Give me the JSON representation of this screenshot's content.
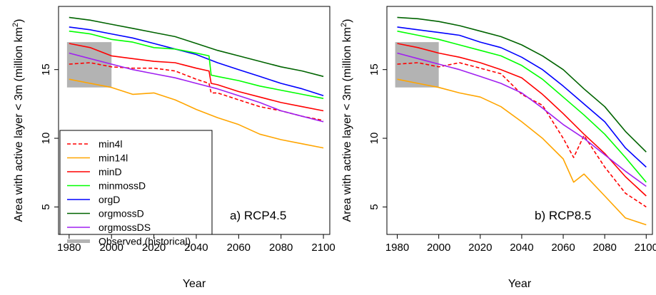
{
  "chart_data": [
    {
      "type": "line",
      "panel_label": "a) RCP4.5",
      "xlabel": "Year",
      "ylabel_prefix": "Area with active layer < 3m (million km",
      "ylabel_sup": "2",
      "ylabel_suffix": ")",
      "xlim": [
        1975,
        2103
      ],
      "ylim": [
        3.0,
        19.6
      ],
      "xticks": [
        1980,
        2000,
        2020,
        2040,
        2060,
        2080,
        2100
      ],
      "yticks": [
        5,
        10,
        15
      ],
      "observed": {
        "x": [
          1979,
          2000
        ],
        "y": [
          13.7,
          17.0
        ],
        "color": "#b3b3b3"
      },
      "legend": {
        "placement": "bottom-left",
        "entries": [
          {
            "name": "min4l",
            "color": "#ff0000",
            "dash": true
          },
          {
            "name": "min14l",
            "color": "#ffa500",
            "dash": false
          },
          {
            "name": "minD",
            "color": "#ff0000",
            "dash": false
          },
          {
            "name": "minmossD",
            "color": "#00ff00",
            "dash": false
          },
          {
            "name": "orgD",
            "color": "#0000ff",
            "dash": false
          },
          {
            "name": "orgmossD",
            "color": "#006400",
            "dash": false
          },
          {
            "name": "orgmossDS",
            "color": "#a020f0",
            "dash": false
          },
          {
            "name": "Observed (historical)",
            "color": "#b3b3b3",
            "dash": false,
            "thick": true
          }
        ]
      },
      "series": [
        {
          "name": "orgmossD",
          "color": "#006400",
          "dash": false,
          "x": [
            1980,
            1990,
            2000,
            2010,
            2020,
            2030,
            2040,
            2050,
            2060,
            2070,
            2080,
            2090,
            2100
          ],
          "y": [
            18.8,
            18.6,
            18.3,
            18.0,
            17.7,
            17.4,
            16.9,
            16.4,
            16.0,
            15.6,
            15.2,
            14.9,
            14.5
          ]
        },
        {
          "name": "orgD",
          "color": "#0000ff",
          "dash": false,
          "x": [
            1980,
            1990,
            2000,
            2010,
            2020,
            2030,
            2040,
            2050,
            2060,
            2070,
            2080,
            2090,
            2100
          ],
          "y": [
            18.1,
            17.9,
            17.6,
            17.3,
            16.9,
            16.5,
            16.1,
            15.5,
            15.0,
            14.5,
            14.0,
            13.6,
            13.1
          ]
        },
        {
          "name": "minmossD",
          "color": "#00ff00",
          "dash": false,
          "x": [
            1980,
            1990,
            2000,
            2010,
            2020,
            2030,
            2040,
            2046,
            2047,
            2050,
            2060,
            2070,
            2080,
            2090,
            2100
          ],
          "y": [
            17.8,
            17.6,
            17.2,
            17.0,
            16.6,
            16.5,
            16.2,
            16.0,
            14.6,
            14.5,
            14.2,
            13.8,
            13.5,
            13.2,
            12.9
          ]
        },
        {
          "name": "minD",
          "color": "#ff0000",
          "dash": false,
          "x": [
            1980,
            1990,
            2000,
            2010,
            2020,
            2030,
            2040,
            2046,
            2047,
            2050,
            2060,
            2070,
            2080,
            2090,
            2100
          ],
          "y": [
            16.9,
            16.6,
            16.0,
            15.8,
            15.6,
            15.5,
            15.1,
            14.9,
            14.0,
            13.9,
            13.4,
            13.0,
            12.6,
            12.3,
            12.0
          ]
        },
        {
          "name": "min4l",
          "color": "#ff0000",
          "dash": true,
          "x": [
            1980,
            1990,
            2000,
            2010,
            2020,
            2030,
            2040,
            2046,
            2047,
            2050,
            2060,
            2070,
            2080,
            2090,
            2100
          ],
          "y": [
            15.4,
            15.5,
            15.2,
            15.1,
            15.1,
            14.9,
            14.3,
            14.0,
            13.3,
            13.3,
            12.8,
            12.3,
            12.0,
            11.6,
            11.3
          ]
        },
        {
          "name": "orgmossDS",
          "color": "#a020f0",
          "dash": false,
          "x": [
            1980,
            1990,
            2000,
            2010,
            2020,
            2030,
            2040,
            2050,
            2060,
            2070,
            2080,
            2090,
            2100
          ],
          "y": [
            16.2,
            15.8,
            15.4,
            15.0,
            14.7,
            14.4,
            14.0,
            13.6,
            13.1,
            12.6,
            12.0,
            11.6,
            11.2
          ]
        },
        {
          "name": "min14l",
          "color": "#ffa500",
          "dash": false,
          "x": [
            1980,
            1990,
            2000,
            2010,
            2020,
            2030,
            2040,
            2050,
            2060,
            2070,
            2080,
            2090,
            2100
          ],
          "y": [
            14.3,
            14.0,
            13.7,
            13.2,
            13.3,
            12.8,
            12.1,
            11.5,
            11.0,
            10.3,
            9.9,
            9.6,
            9.3
          ]
        }
      ]
    },
    {
      "type": "line",
      "panel_label": "b) RCP8.5",
      "xlabel": "Year",
      "ylabel_prefix": "Area with active layer < 3m (million km",
      "ylabel_sup": "2",
      "ylabel_suffix": ")",
      "xlim": [
        1975,
        2103
      ],
      "ylim": [
        3.0,
        19.6
      ],
      "xticks": [
        1980,
        2000,
        2020,
        2040,
        2060,
        2080,
        2100
      ],
      "yticks": [
        5,
        10,
        15
      ],
      "observed": {
        "x": [
          1979,
          2000
        ],
        "y": [
          13.7,
          17.0
        ],
        "color": "#b3b3b3"
      },
      "series": [
        {
          "name": "orgmossD",
          "color": "#006400",
          "dash": false,
          "x": [
            1980,
            1990,
            2000,
            2010,
            2020,
            2030,
            2040,
            2050,
            2060,
            2070,
            2080,
            2090,
            2100
          ],
          "y": [
            18.8,
            18.7,
            18.5,
            18.2,
            17.8,
            17.4,
            16.8,
            16.0,
            15.0,
            13.6,
            12.3,
            10.5,
            9.0
          ]
        },
        {
          "name": "orgD",
          "color": "#0000ff",
          "dash": false,
          "x": [
            1980,
            1990,
            2000,
            2010,
            2020,
            2030,
            2040,
            2050,
            2060,
            2070,
            2080,
            2090,
            2100
          ],
          "y": [
            18.1,
            17.9,
            17.7,
            17.5,
            17.0,
            16.6,
            15.9,
            15.0,
            13.8,
            12.5,
            11.2,
            9.3,
            7.9
          ]
        },
        {
          "name": "minmossD",
          "color": "#00ff00",
          "dash": false,
          "x": [
            1980,
            1990,
            2000,
            2010,
            2020,
            2030,
            2040,
            2050,
            2060,
            2070,
            2080,
            2090,
            2100
          ],
          "y": [
            17.8,
            17.5,
            17.2,
            16.8,
            16.4,
            16.0,
            15.3,
            14.3,
            13.0,
            11.7,
            10.3,
            8.6,
            6.8
          ]
        },
        {
          "name": "minD",
          "color": "#ff0000",
          "dash": false,
          "x": [
            1980,
            1990,
            2000,
            2010,
            2020,
            2030,
            2040,
            2050,
            2060,
            2070,
            2080,
            2090,
            2100
          ],
          "y": [
            16.9,
            16.6,
            16.2,
            15.9,
            15.5,
            15.0,
            14.4,
            13.2,
            11.8,
            10.3,
            8.9,
            7.2,
            5.8
          ]
        },
        {
          "name": "min4l",
          "color": "#ff0000",
          "dash": true,
          "x": [
            1980,
            1990,
            2000,
            2010,
            2020,
            2030,
            2040,
            2050,
            2060,
            2065,
            2070,
            2080,
            2090,
            2100
          ],
          "y": [
            15.4,
            15.5,
            15.2,
            15.5,
            15.1,
            14.7,
            13.2,
            12.4,
            10.0,
            8.6,
            10.2,
            7.9,
            6.0,
            5.0
          ]
        },
        {
          "name": "orgmossDS",
          "color": "#a020f0",
          "dash": false,
          "x": [
            1980,
            1990,
            2000,
            2010,
            2020,
            2030,
            2040,
            2050,
            2060,
            2070,
            2080,
            2090,
            2100
          ],
          "y": [
            16.2,
            15.8,
            15.4,
            15.0,
            14.5,
            14.0,
            13.3,
            12.2,
            11.0,
            10.0,
            8.8,
            7.6,
            6.5
          ]
        },
        {
          "name": "min14l",
          "color": "#ffa500",
          "dash": false,
          "x": [
            1980,
            1990,
            2000,
            2010,
            2020,
            2030,
            2040,
            2050,
            2060,
            2065,
            2070,
            2080,
            2090,
            2100
          ],
          "y": [
            14.3,
            14.0,
            13.7,
            13.3,
            13.0,
            12.3,
            11.2,
            10.0,
            8.5,
            6.8,
            7.4,
            5.8,
            4.2,
            3.7
          ]
        }
      ]
    }
  ]
}
